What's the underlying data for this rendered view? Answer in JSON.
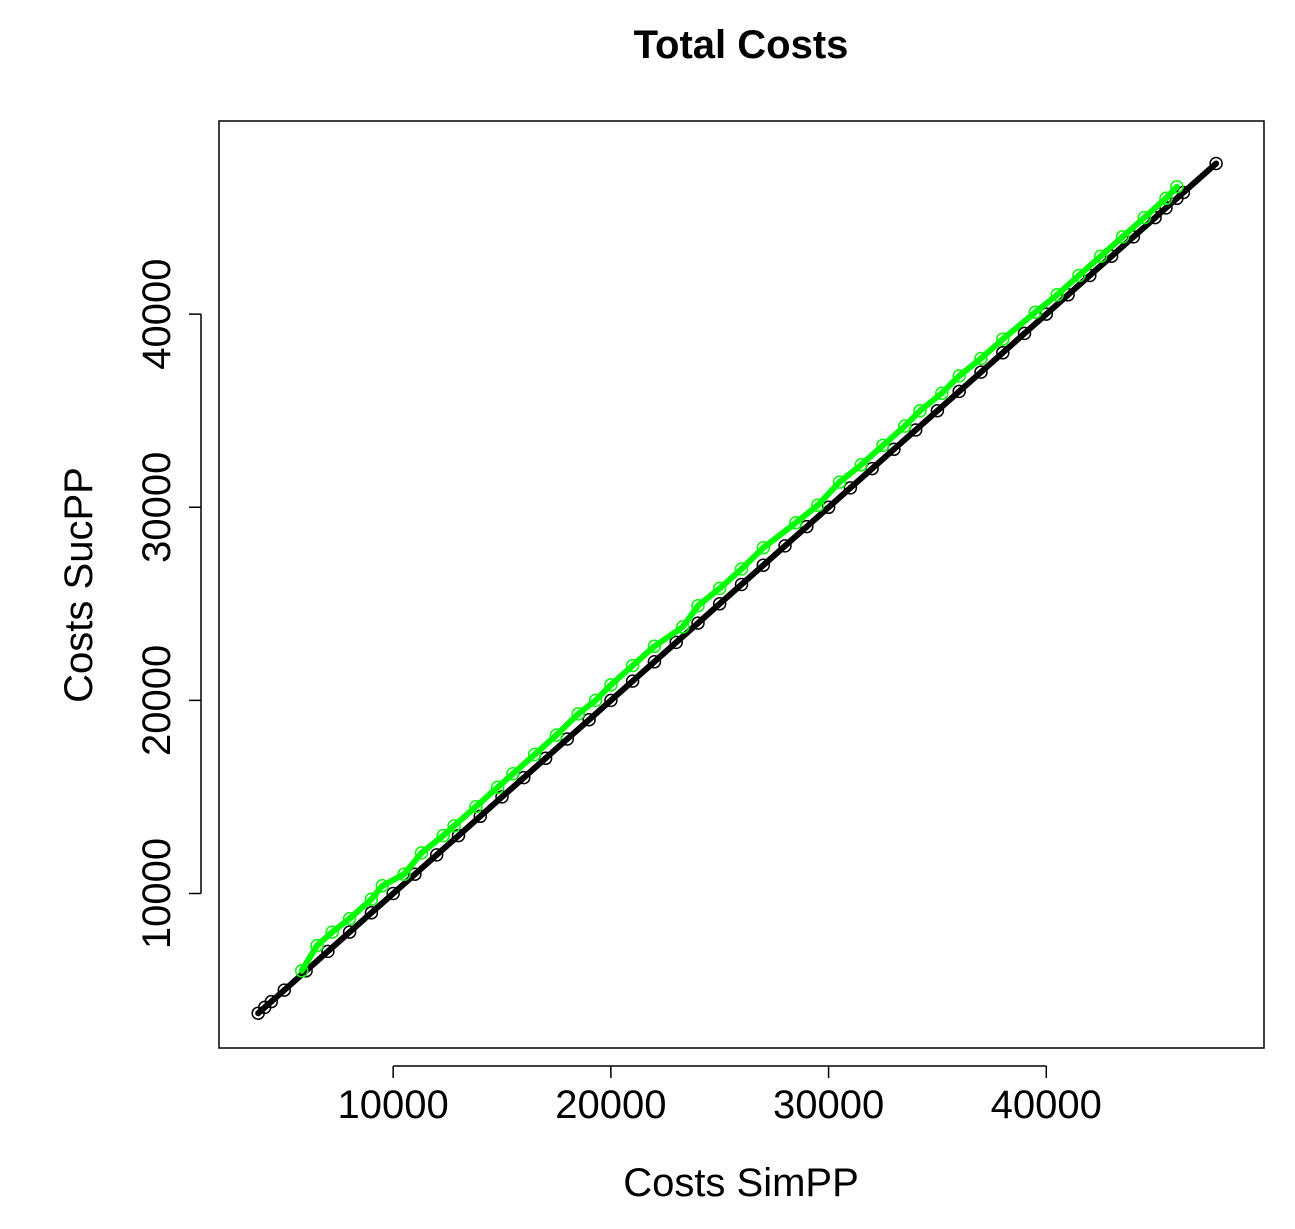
{
  "chart_data": {
    "type": "scatter",
    "title": "Total Costs",
    "xlabel": "Costs SimPP",
    "ylabel": "Costs SucPP",
    "xlim": [
      2000,
      50000
    ],
    "ylim": [
      2000,
      50000
    ],
    "xticks": [
      10000,
      20000,
      30000,
      40000
    ],
    "yticks": [
      10000,
      20000,
      30000,
      40000
    ],
    "xtick_labels": [
      "10000",
      "20000",
      "30000",
      "40000"
    ],
    "ytick_labels": [
      "10000",
      "20000",
      "30000",
      "40000"
    ],
    "grid": false,
    "legend": "none",
    "series": [
      {
        "color": "#000000",
        "marker": "open-circle",
        "x": [
          3800,
          4100,
          4400,
          5000,
          6000,
          7000,
          8000,
          9000,
          10000,
          11000,
          12000,
          13000,
          14000,
          15000,
          16000,
          17000,
          18000,
          19000,
          20000,
          21000,
          22000,
          23000,
          24000,
          25000,
          26000,
          27000,
          28000,
          29000,
          30000,
          31000,
          32000,
          33000,
          34000,
          35000,
          36000,
          37000,
          38000,
          39000,
          40000,
          41000,
          42000,
          43000,
          44000,
          45000,
          45500,
          46000,
          46300,
          47800
        ],
        "y": [
          3800,
          4100,
          4400,
          5000,
          6000,
          7000,
          8000,
          9000,
          10000,
          11000,
          12000,
          13000,
          14000,
          15000,
          16000,
          17000,
          18000,
          19000,
          20000,
          21000,
          22000,
          23000,
          24000,
          25000,
          26000,
          27000,
          28000,
          29000,
          30000,
          31000,
          32000,
          33000,
          34000,
          35000,
          36000,
          37000,
          38000,
          39000,
          40000,
          41000,
          42000,
          43000,
          44000,
          45000,
          45500,
          46000,
          46300,
          47800
        ]
      },
      {
        "color": "#00ff00",
        "marker": "open-circle",
        "x": [
          5800,
          6500,
          7200,
          8000,
          9000,
          9500,
          10500,
          11300,
          12300,
          12800,
          13800,
          14800,
          15500,
          16500,
          17500,
          18500,
          19300,
          20000,
          21000,
          22000,
          23300,
          24000,
          25000,
          26000,
          27000,
          28500,
          29500,
          30500,
          31500,
          32500,
          33500,
          34200,
          35200,
          36000,
          37000,
          38000,
          39500,
          40500,
          41500,
          42500,
          43500,
          44500,
          45500,
          46000
        ],
        "y": [
          6000,
          7300,
          8000,
          8700,
          9700,
          10400,
          11000,
          12100,
          13000,
          13500,
          14500,
          15500,
          16200,
          17200,
          18200,
          19300,
          20000,
          20800,
          21800,
          22800,
          23800,
          24900,
          25800,
          26800,
          27900,
          29200,
          30100,
          31300,
          32200,
          33200,
          34200,
          35000,
          35900,
          36800,
          37700,
          38700,
          40100,
          41000,
          42000,
          43000,
          44000,
          45000,
          46000,
          46600
        ]
      }
    ]
  }
}
